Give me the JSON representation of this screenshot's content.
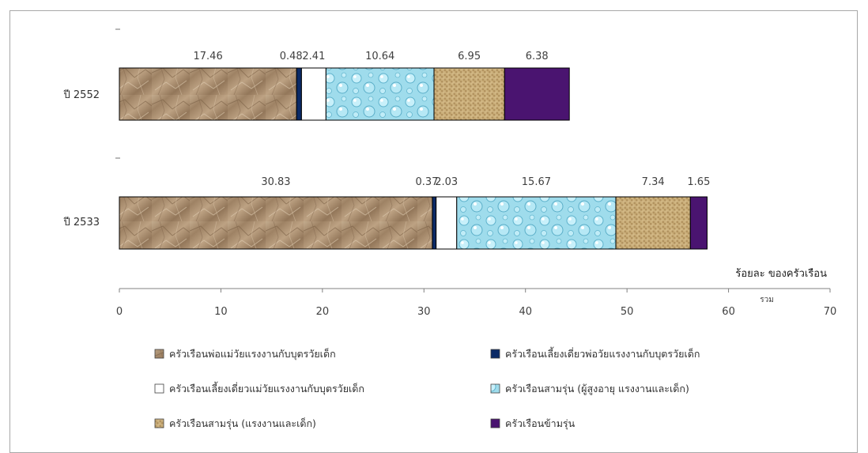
{
  "chart_data": {
    "type": "bar",
    "orientation": "horizontal",
    "stacked": true,
    "categories": [
      "ปี 2552",
      "ปี 2533"
    ],
    "series": [
      {
        "name": "ครัวเรือนพ่อแม่วัยแรงงานกับบุตรวัยเด็ก",
        "values": [
          17.46,
          30.83
        ],
        "color": "#b09477",
        "texture": "crumpled-paper"
      },
      {
        "name": "ครัวเรือนเลี้ยงเดี่ยวพ่อวัยแรงงานกับบุตรวัยเด็ก",
        "values": [
          0.48,
          0.37
        ],
        "color": "#0b2a66",
        "texture": "solid"
      },
      {
        "name": "ครัวเรือนเลี้ยงเดี่ยวแม่วัยแรงงานกับบุตรวัยเด็ก",
        "values": [
          2.41,
          2.03
        ],
        "color": "#ffffff",
        "texture": "solid"
      },
      {
        "name": "ครัวเรือนสามรุ่น (ผู้สูงอายุ แรงงานและเด็ก)",
        "values": [
          10.64,
          15.67
        ],
        "color": "#9fdcec",
        "texture": "water-droplets"
      },
      {
        "name": "ครัวเรือนสามรุ่น (แรงงานและเด็ก)",
        "values": [
          6.95,
          7.34
        ],
        "color": "#c7ab74",
        "texture": "burlap"
      },
      {
        "name": "ครัวเรือนข้ามรุ่น",
        "values": [
          6.38,
          1.65
        ],
        "color": "#4a1470",
        "texture": "solid"
      }
    ],
    "value_labels": [
      [
        "17.46",
        "0.48",
        "2.41",
        "10.64",
        "6.95",
        "6.38"
      ],
      [
        "30.83",
        "0.37",
        "2.03",
        "15.67",
        "7.34",
        "1.65"
      ]
    ],
    "xlabel": "ร้อยละ ของครัวเรือน",
    "xlabel_sub": "รวม",
    "xlim": [
      0,
      70
    ],
    "xticks": [
      "0",
      "10",
      "20",
      "30",
      "40",
      "50",
      "60",
      "70"
    ],
    "grid": false,
    "legend_position": "bottom"
  }
}
